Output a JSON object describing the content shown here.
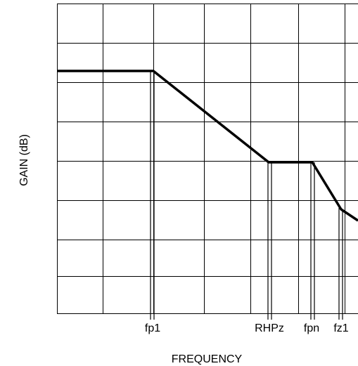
{
  "x_label": "FREQUENCY",
  "y_label": "GAIN (dB)",
  "markers": [
    {
      "label": "fp1"
    },
    {
      "label": "RHPz"
    },
    {
      "label": "fpn"
    },
    {
      "label": "fz1"
    }
  ]
}
